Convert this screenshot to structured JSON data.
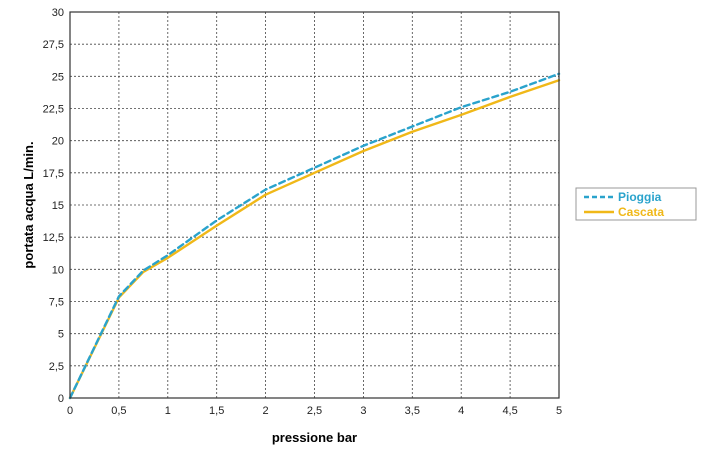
{
  "chart_data": {
    "type": "line",
    "title": "",
    "xlabel": "pressione bar",
    "ylabel": "portata acqua  L/min.",
    "xlim": [
      0,
      5
    ],
    "ylim": [
      0,
      30
    ],
    "x_ticks": [
      "0",
      "0,5",
      "1",
      "1,5",
      "2",
      "2,5",
      "3",
      "3,5",
      "4",
      "4,5",
      "5"
    ],
    "y_ticks": [
      "0",
      "2,5",
      "5",
      "7,5",
      "10",
      "12,5",
      "15",
      "17,5",
      "20",
      "22,5",
      "25",
      "27,5",
      "30"
    ],
    "grid": true,
    "legend_position": "right",
    "series": [
      {
        "name": "Pioggia",
        "color": "#2aa3cc",
        "dash": true,
        "x": [
          0,
          0.5,
          0.75,
          1,
          1.5,
          2,
          2.5,
          3,
          3.5,
          4,
          4.5,
          5
        ],
        "y": [
          0,
          7.9,
          9.9,
          11.1,
          13.8,
          16.2,
          17.9,
          19.6,
          21.1,
          22.6,
          23.8,
          25.2
        ]
      },
      {
        "name": "Cascata",
        "color": "#f0b818",
        "dash": false,
        "x": [
          0,
          0.5,
          0.75,
          1,
          1.5,
          2,
          2.5,
          3,
          3.5,
          4,
          4.5,
          5
        ],
        "y": [
          0,
          7.8,
          9.8,
          10.9,
          13.4,
          15.8,
          17.5,
          19.2,
          20.7,
          22.0,
          23.4,
          24.7
        ]
      }
    ]
  }
}
